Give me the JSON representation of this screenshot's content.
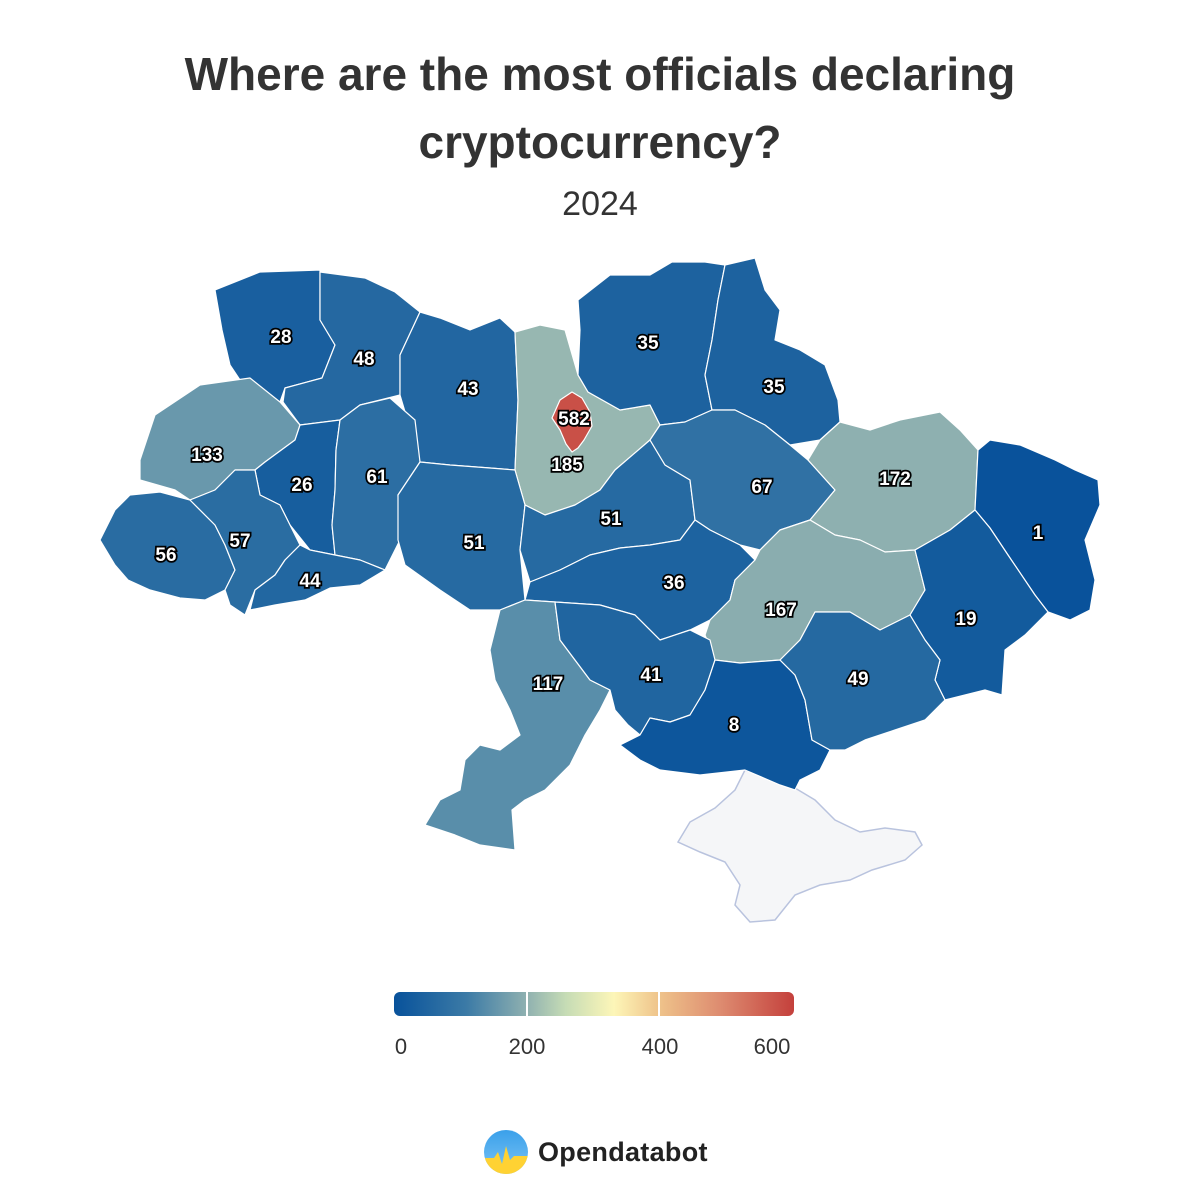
{
  "header": {
    "title": "Where are the most officials declaring cryptocurrency?",
    "subtitle": "2024"
  },
  "map_data": {
    "type": "choropleth",
    "scale": {
      "min": 0,
      "max": 600,
      "ticks": [
        "0",
        "200",
        "400",
        "600"
      ],
      "colors": [
        "#08529b",
        "#3b7aa6",
        "#8eb0b0",
        "#c6dcb5",
        "#fdf6b8",
        "#efc48b",
        "#dd8a6f",
        "#c4403c"
      ]
    },
    "regions": [
      {
        "key": "volyn",
        "value": 28
      },
      {
        "key": "rivne",
        "value": 48
      },
      {
        "key": "zhytomyr",
        "value": 43
      },
      {
        "key": "kyiv_oblast",
        "value": 185
      },
      {
        "key": "kyiv_city",
        "value": 582
      },
      {
        "key": "chernihiv",
        "value": 35
      },
      {
        "key": "sumy",
        "value": 35
      },
      {
        "key": "lviv",
        "value": 133
      },
      {
        "key": "ternopil",
        "value": 26
      },
      {
        "key": "khmelnytskyi",
        "value": 61
      },
      {
        "key": "vinnytsia",
        "value": 51
      },
      {
        "key": "cherkasy",
        "value": 51
      },
      {
        "key": "poltava",
        "value": 67
      },
      {
        "key": "kharkiv",
        "value": 172
      },
      {
        "key": "luhansk",
        "value": 1
      },
      {
        "key": "zakarpattia",
        "value": 56
      },
      {
        "key": "ivano_frankivsk",
        "value": 57
      },
      {
        "key": "chernivtsi",
        "value": 44
      },
      {
        "key": "kirovohrad",
        "value": 36
      },
      {
        "key": "dnipropetrovsk",
        "value": 167
      },
      {
        "key": "donetsk",
        "value": 19
      },
      {
        "key": "odesa",
        "value": 117
      },
      {
        "key": "mykolaiv",
        "value": 41
      },
      {
        "key": "kherson",
        "value": 8
      },
      {
        "key": "zaporizhzhia",
        "value": 49
      }
    ],
    "labels": {
      "volyn": "28",
      "rivne": "48",
      "zhytomyr": "43",
      "kyiv_oblast": "185",
      "kyiv_city": "582",
      "chernihiv": "35",
      "sumy": "35",
      "lviv": "133",
      "ternopil": "26",
      "khmelnytskyi": "61",
      "vinnytsia": "51",
      "cherkasy": "51",
      "poltava": "67",
      "kharkiv": "172",
      "luhansk": "1",
      "zakarpattia": "56",
      "ivano_frankivsk": "57",
      "chernivtsi": "44",
      "kirovohrad": "36",
      "dnipropetrovsk": "167",
      "donetsk": "19",
      "odesa": "117",
      "mykolaiv": "41",
      "kherson": "8",
      "zaporizhzhia": "49"
    }
  },
  "legend": {
    "min_label": "0",
    "t1_label": "200",
    "t2_label": "400",
    "max_label": "600"
  },
  "brand": {
    "name": "Opendatabot",
    "icon": "opendatabot-logo"
  }
}
